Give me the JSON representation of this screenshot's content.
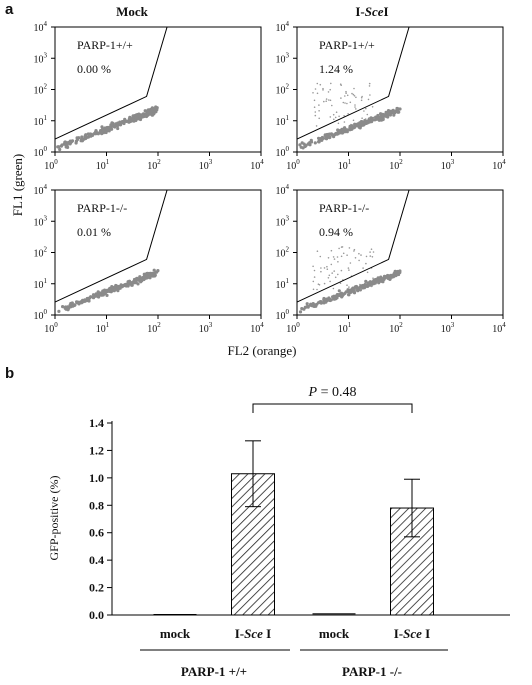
{
  "panel_a": {
    "letter": "a",
    "col_titles": [
      "Mock",
      "I-",
      "Sce",
      "I"
    ],
    "ylabel": "FL1 (green)",
    "xlabel": "FL2 (orange)",
    "tick_base": "10",
    "tick_exps": [
      "0",
      "1",
      "2",
      "3",
      "4"
    ],
    "plots": [
      {
        "genotype": "PARP-1+/+",
        "percent": "0.00 %"
      },
      {
        "genotype": "PARP-1+/+",
        "percent": "1.24 %"
      },
      {
        "genotype": "PARP-1-/-",
        "percent": "0.01 %"
      },
      {
        "genotype": "PARP-1-/-",
        "percent": "0.94  %"
      }
    ]
  },
  "panel_b": {
    "letter": "b",
    "ylabel": "GFP-positive (%)",
    "p_label": "P",
    "p_rest": " = 0.48",
    "cat_prefix": "I-",
    "cat_italic": "Sce",
    "cat_suffix": " I",
    "cat_mock": "mock",
    "groups": [
      "PARP-1 +/+",
      "PARP-1 -/-"
    ]
  },
  "chart_data": [
    {
      "type": "scatter",
      "x_scale": "log",
      "y_scale": "log",
      "xlim": [
        1,
        10000
      ],
      "ylim": [
        1,
        10000
      ],
      "xlabel": "FL2 (orange)",
      "ylabel": "FL1 (green)",
      "panels": [
        {
          "condition": "Mock",
          "genotype": "PARP-1+/+",
          "gfp_positive_percent": 0.0
        },
        {
          "condition": "I-SceI",
          "genotype": "PARP-1+/+",
          "gfp_positive_percent": 1.24
        },
        {
          "condition": "Mock",
          "genotype": "PARP-1-/-",
          "gfp_positive_percent": 0.01
        },
        {
          "condition": "I-SceI",
          "genotype": "PARP-1-/-",
          "gfp_positive_percent": 0.94
        }
      ]
    },
    {
      "type": "bar",
      "categories": [
        "mock",
        "I-Sce I",
        "mock",
        "I-Sce I"
      ],
      "groups": [
        "PARP-1 +/+",
        "PARP-1 +/+",
        "PARP-1 -/-",
        "PARP-1 -/-"
      ],
      "values": [
        0.0,
        1.03,
        0.005,
        0.78
      ],
      "errors": [
        0.0,
        0.24,
        0.0,
        0.21
      ],
      "ylabel": "GFP-positive (%)",
      "ylim": [
        0,
        1.4
      ],
      "yticks": [
        "0.0",
        "0.2",
        "0.4",
        "0.6",
        "0.8",
        "1.0",
        "1.2",
        "1.4"
      ],
      "annotation": "P = 0.48",
      "bar_pattern": "diagonal-hatch"
    }
  ]
}
